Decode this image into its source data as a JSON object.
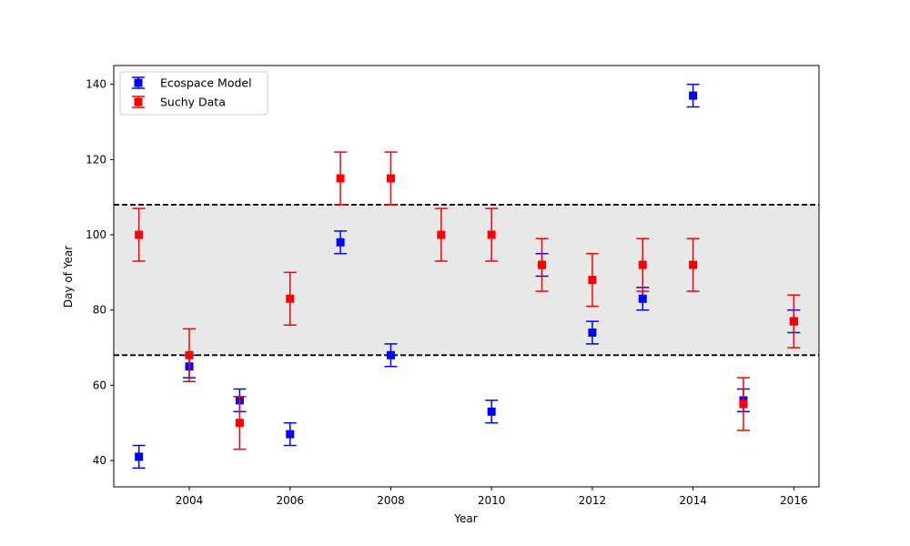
{
  "chart_data": {
    "type": "scatter",
    "xlabel": "Year",
    "ylabel": "Day of Year",
    "xlim": [
      2002.5,
      2016.5
    ],
    "ylim": [
      33,
      145
    ],
    "x_ticks": [
      2004,
      2006,
      2008,
      2010,
      2012,
      2014,
      2016
    ],
    "y_ticks": [
      40,
      60,
      80,
      100,
      120,
      140
    ],
    "grid": false,
    "legend_position": "top-left",
    "band": {
      "ymin": 68,
      "ymax": 108,
      "fill": "#e8e8e8",
      "line_color": "#000000",
      "line_style": "dashed"
    },
    "series": [
      {
        "name": "Ecospace Model",
        "color": "#0000ff",
        "marker": "square",
        "x": [
          2003,
          2004,
          2005,
          2006,
          2007,
          2008,
          2010,
          2011,
          2012,
          2013,
          2014,
          2015,
          2016
        ],
        "y": [
          41,
          65,
          56,
          47,
          98,
          68,
          53,
          92,
          74,
          83,
          137,
          56,
          77
        ],
        "err": [
          3,
          3,
          3,
          3,
          3,
          3,
          3,
          3,
          3,
          3,
          3,
          3,
          3
        ]
      },
      {
        "name": "Suchy Data",
        "color": "#ff0000",
        "marker": "square",
        "x": [
          2003,
          2004,
          2005,
          2006,
          2007,
          2008,
          2009,
          2010,
          2011,
          2012,
          2013,
          2014,
          2015,
          2016
        ],
        "y": [
          100,
          68,
          50,
          83,
          115,
          115,
          100,
          100,
          92,
          88,
          92,
          92,
          55,
          77
        ],
        "err": [
          7,
          7,
          7,
          7,
          7,
          7,
          7,
          7,
          7,
          7,
          7,
          7,
          7,
          7
        ]
      }
    ]
  }
}
